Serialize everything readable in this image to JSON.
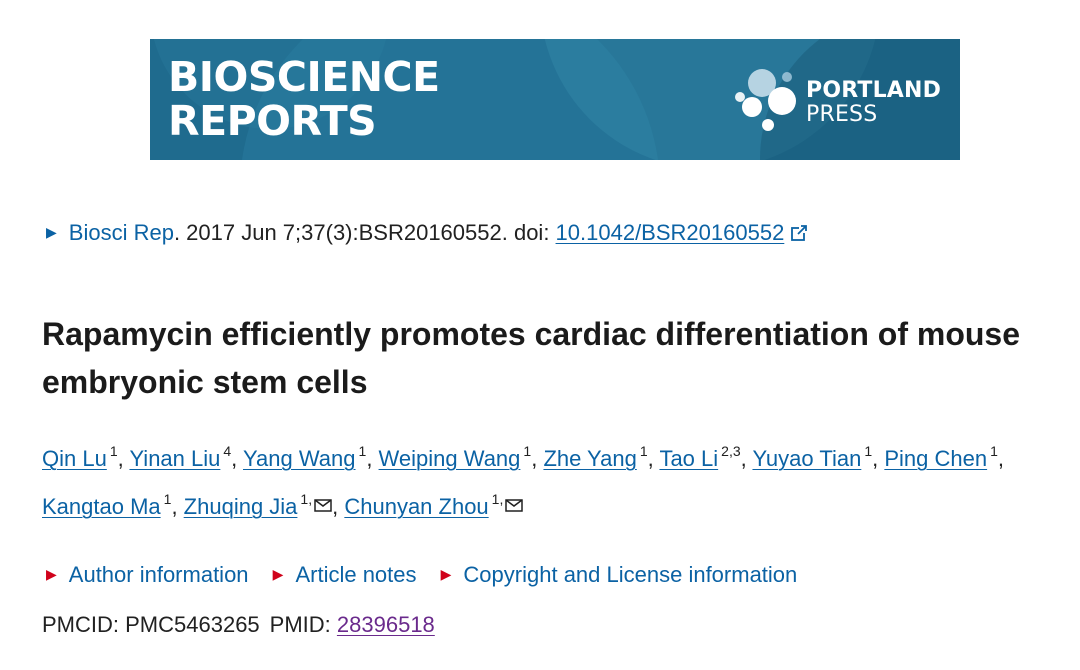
{
  "banner": {
    "journal_line1": "BIOSCIENCE",
    "journal_line2": "REPORTS",
    "publisher_line1": "PORTLAND",
    "publisher_line2": "PRESS",
    "color": "#1f6b8e"
  },
  "citation": {
    "journal": "Biosci Rep",
    "details": ". 2017 Jun 7;37(3):BSR20160552. doi: ",
    "doi": "10.1042/BSR20160552",
    "link_color": "#0b62a4"
  },
  "title": "Rapamycin efficiently promotes cardiac differentiation of mouse embryonic stem cells",
  "authors": [
    {
      "name": "Qin Lu",
      "aff": "1",
      "sep": ", "
    },
    {
      "name": "Yinan Liu",
      "aff": "4",
      "sep": ", "
    },
    {
      "name": "Yang Wang",
      "aff": "1",
      "sep": ", "
    },
    {
      "name": "Weiping Wang",
      "aff": "1",
      "sep": ", "
    },
    {
      "name": "Zhe Yang",
      "aff": "1",
      "sep": ", "
    },
    {
      "name": "Tao Li",
      "aff": "2,3",
      "sep": ", "
    },
    {
      "name": "Yuyao Tian",
      "aff": "1",
      "sep": ", "
    },
    {
      "name": "Ping Chen",
      "aff": "1",
      "sep": ", "
    },
    {
      "name": "Kangtao Ma",
      "aff": "1",
      "sep": ", "
    },
    {
      "name": "Zhuqing Jia",
      "aff": "1,",
      "sep": ", "
    },
    {
      "name": "Chunyan Zhou",
      "aff": "1,",
      "sep": ""
    }
  ],
  "links": {
    "author_info": "Author information",
    "article_notes": "Article notes",
    "copyright": "Copyright and License information"
  },
  "ids": {
    "pmcid_label": "PMCID: ",
    "pmcid": "PMC5463265",
    "pmid_label": "PMID: ",
    "pmid": "28396518"
  }
}
